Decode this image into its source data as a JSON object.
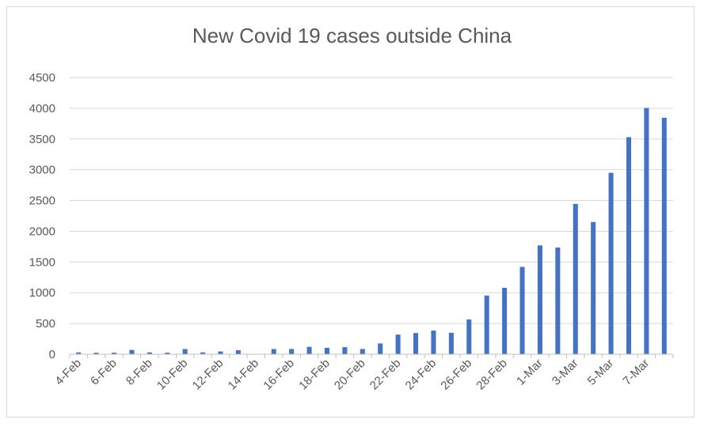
{
  "chart_data": {
    "type": "bar",
    "title": "New Covid 19 cases outside China",
    "xlabel": "",
    "ylabel": "",
    "ylim": [
      0,
      4500
    ],
    "yticks": [
      0,
      500,
      1000,
      1500,
      2000,
      2500,
      3000,
      3500,
      4000,
      4500
    ],
    "grid": true,
    "legend": "none",
    "bar_color": "#4472c4",
    "categories": [
      "4-Feb",
      "5-Feb",
      "6-Feb",
      "7-Feb",
      "8-Feb",
      "9-Feb",
      "10-Feb",
      "11-Feb",
      "12-Feb",
      "13-Feb",
      "14-Feb",
      "15-Feb",
      "16-Feb",
      "17-Feb",
      "18-Feb",
      "19-Feb",
      "20-Feb",
      "21-Feb",
      "22-Feb",
      "23-Feb",
      "24-Feb",
      "25-Feb",
      "26-Feb",
      "27-Feb",
      "28-Feb",
      "29-Feb",
      "1-Mar",
      "2-Mar",
      "3-Mar",
      "4-Mar",
      "5-Mar",
      "6-Mar",
      "7-Mar",
      "8-Mar"
    ],
    "tick_labels": [
      "4-Feb",
      "",
      "6-Feb",
      "",
      "8-Feb",
      "",
      "10-Feb",
      "",
      "12-Feb",
      "",
      "14-Feb",
      "",
      "16-Feb",
      "",
      "18-Feb",
      "",
      "20-Feb",
      "",
      "22-Feb",
      "",
      "24-Feb",
      "",
      "26-Feb",
      "",
      "28-Feb",
      "",
      "1-Mar",
      "",
      "3-Mar",
      "",
      "5-Mar",
      "",
      "7-Mar",
      ""
    ],
    "values": [
      30,
      25,
      25,
      70,
      30,
      25,
      85,
      30,
      45,
      65,
      0,
      85,
      85,
      120,
      105,
      115,
      85,
      175,
      320,
      345,
      385,
      350,
      565,
      955,
      1080,
      1420,
      1770,
      1735,
      2445,
      2150,
      2950,
      3530,
      4005,
      3845
    ]
  }
}
